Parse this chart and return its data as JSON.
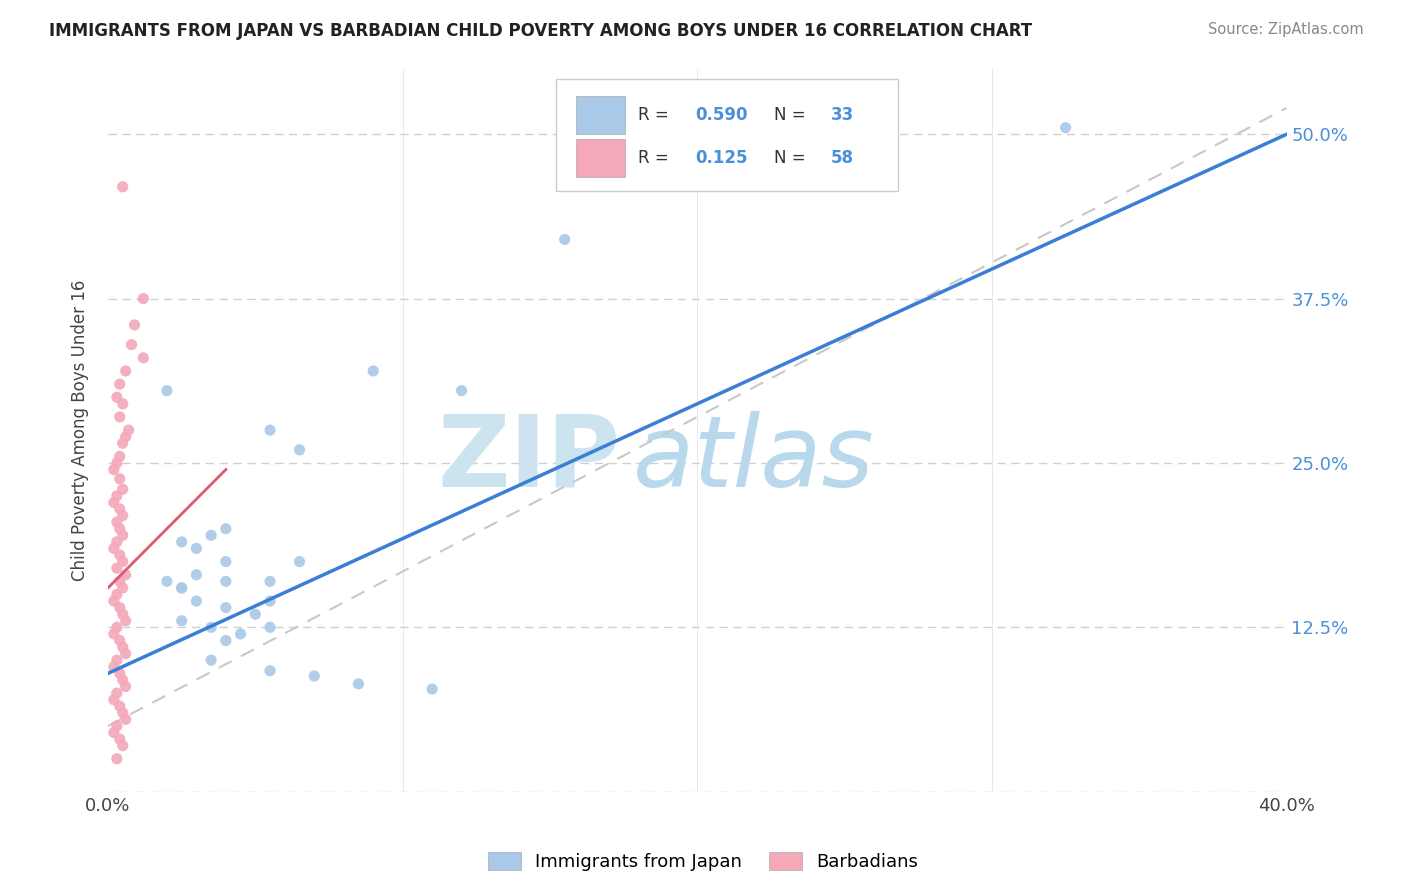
{
  "title": "IMMIGRANTS FROM JAPAN VS BARBADIAN CHILD POVERTY AMONG BOYS UNDER 16 CORRELATION CHART",
  "source": "Source: ZipAtlas.com",
  "ylabel": "Child Poverty Among Boys Under 16",
  "r_japan": 0.59,
  "n_japan": 33,
  "r_barbadian": 0.125,
  "n_barbadian": 58,
  "japan_color": "#aac8e8",
  "barbadian_color": "#f4a8b8",
  "japan_line_color": "#3a7fd5",
  "barbadian_line_color": "#e05870",
  "background_color": "#ffffff",
  "watermark_zip_color": "#cce4f0",
  "watermark_atlas_color": "#b8d8ec",
  "xlim": [
    0.0,
    0.4
  ],
  "ylim": [
    0.0,
    0.55
  ],
  "x_ticks": [
    0.0,
    0.4
  ],
  "x_tick_labels": [
    "0.0%",
    "40.0%"
  ],
  "y_ticks": [
    0.0,
    0.125,
    0.25,
    0.375,
    0.5
  ],
  "y_tick_labels_right": [
    "",
    "12.5%",
    "25.0%",
    "37.5%",
    "50.0%"
  ],
  "japan_scatter": [
    [
      0.155,
      0.42
    ],
    [
      0.02,
      0.305
    ],
    [
      0.055,
      0.275
    ],
    [
      0.065,
      0.26
    ],
    [
      0.09,
      0.32
    ],
    [
      0.12,
      0.305
    ],
    [
      0.04,
      0.2
    ],
    [
      0.035,
      0.195
    ],
    [
      0.025,
      0.19
    ],
    [
      0.03,
      0.185
    ],
    [
      0.04,
      0.175
    ],
    [
      0.03,
      0.165
    ],
    [
      0.025,
      0.155
    ],
    [
      0.04,
      0.16
    ],
    [
      0.055,
      0.145
    ],
    [
      0.02,
      0.16
    ],
    [
      0.025,
      0.155
    ],
    [
      0.03,
      0.145
    ],
    [
      0.04,
      0.14
    ],
    [
      0.05,
      0.135
    ],
    [
      0.055,
      0.125
    ],
    [
      0.025,
      0.13
    ],
    [
      0.035,
      0.125
    ],
    [
      0.045,
      0.12
    ],
    [
      0.04,
      0.115
    ],
    [
      0.065,
      0.175
    ],
    [
      0.055,
      0.16
    ],
    [
      0.035,
      0.1
    ],
    [
      0.055,
      0.092
    ],
    [
      0.07,
      0.088
    ],
    [
      0.085,
      0.082
    ],
    [
      0.11,
      0.078
    ],
    [
      0.325,
      0.505
    ]
  ],
  "barbadian_scatter": [
    [
      0.005,
      0.46
    ],
    [
      0.012,
      0.375
    ],
    [
      0.009,
      0.355
    ],
    [
      0.008,
      0.34
    ],
    [
      0.012,
      0.33
    ],
    [
      0.006,
      0.32
    ],
    [
      0.004,
      0.31
    ],
    [
      0.003,
      0.3
    ],
    [
      0.005,
      0.295
    ],
    [
      0.004,
      0.285
    ],
    [
      0.007,
      0.275
    ],
    [
      0.006,
      0.27
    ],
    [
      0.005,
      0.265
    ],
    [
      0.004,
      0.255
    ],
    [
      0.003,
      0.25
    ],
    [
      0.002,
      0.245
    ],
    [
      0.004,
      0.238
    ],
    [
      0.005,
      0.23
    ],
    [
      0.003,
      0.225
    ],
    [
      0.002,
      0.22
    ],
    [
      0.004,
      0.215
    ],
    [
      0.005,
      0.21
    ],
    [
      0.003,
      0.205
    ],
    [
      0.004,
      0.2
    ],
    [
      0.005,
      0.195
    ],
    [
      0.003,
      0.19
    ],
    [
      0.002,
      0.185
    ],
    [
      0.004,
      0.18
    ],
    [
      0.005,
      0.175
    ],
    [
      0.003,
      0.17
    ],
    [
      0.006,
      0.165
    ],
    [
      0.004,
      0.16
    ],
    [
      0.005,
      0.155
    ],
    [
      0.003,
      0.15
    ],
    [
      0.002,
      0.145
    ],
    [
      0.004,
      0.14
    ],
    [
      0.005,
      0.135
    ],
    [
      0.006,
      0.13
    ],
    [
      0.003,
      0.125
    ],
    [
      0.002,
      0.12
    ],
    [
      0.004,
      0.115
    ],
    [
      0.005,
      0.11
    ],
    [
      0.006,
      0.105
    ],
    [
      0.003,
      0.1
    ],
    [
      0.002,
      0.095
    ],
    [
      0.004,
      0.09
    ],
    [
      0.005,
      0.085
    ],
    [
      0.006,
      0.08
    ],
    [
      0.003,
      0.075
    ],
    [
      0.002,
      0.07
    ],
    [
      0.004,
      0.065
    ],
    [
      0.005,
      0.06
    ],
    [
      0.006,
      0.055
    ],
    [
      0.003,
      0.05
    ],
    [
      0.002,
      0.045
    ],
    [
      0.004,
      0.04
    ],
    [
      0.005,
      0.035
    ],
    [
      0.003,
      0.025
    ]
  ]
}
